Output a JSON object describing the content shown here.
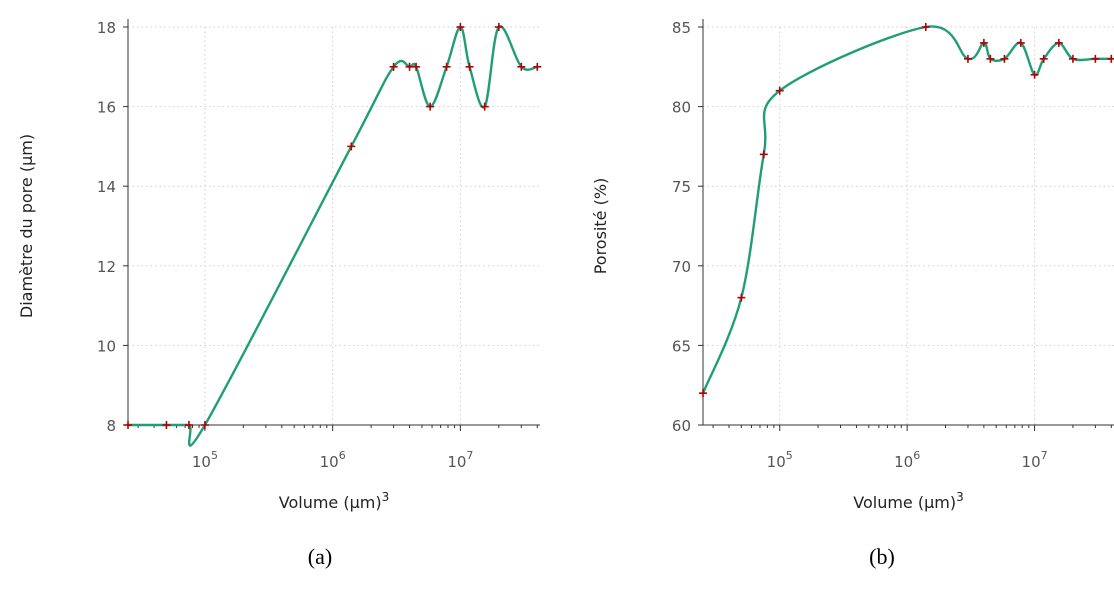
{
  "chart_data": [
    {
      "type": "line",
      "caption": "(a)",
      "xlabel": "Volume (µm)",
      "xlabel_sup": "3",
      "ylabel": "Diamètre du pore (µm)",
      "xscale": "log",
      "xlim": [
        25000,
        42000000
      ],
      "ylim": [
        8,
        18
      ],
      "yticks": [
        8,
        10,
        12,
        14,
        16,
        18
      ],
      "xticks": [
        {
          "base": "10",
          "exp": "5",
          "value": 100000
        },
        {
          "base": "10",
          "exp": "6",
          "value": 1000000
        },
        {
          "base": "10",
          "exp": "7",
          "value": 10000000
        }
      ],
      "grid": true,
      "line_color": "#1f9e78",
      "marker_color": "#b30000",
      "x": [
        25000,
        50000,
        75000,
        100000,
        1400000,
        3000000,
        4000000,
        4500000,
        5800000,
        7800000,
        10000000,
        11800000,
        15500000,
        20000000,
        30000000,
        40000000
      ],
      "values": [
        8,
        8,
        8,
        8,
        15,
        17,
        17,
        17,
        16,
        17,
        18,
        17,
        16,
        18,
        17,
        17
      ]
    },
    {
      "type": "line",
      "caption": "(b)",
      "xlabel": "Volume (µm)",
      "xlabel_sup": "3",
      "ylabel": "Porosité (%)",
      "xscale": "log",
      "xlim": [
        25000,
        42000000
      ],
      "ylim": [
        60,
        85
      ],
      "yticks": [
        60,
        65,
        70,
        75,
        80,
        85
      ],
      "xticks": [
        {
          "base": "10",
          "exp": "5",
          "value": 100000
        },
        {
          "base": "10",
          "exp": "6",
          "value": 1000000
        },
        {
          "base": "10",
          "exp": "7",
          "value": 10000000
        }
      ],
      "grid": true,
      "line_color": "#1f9e78",
      "marker_color": "#b30000",
      "x": [
        25000,
        50000,
        75000,
        100000,
        1400000,
        3000000,
        4000000,
        4500000,
        5800000,
        7800000,
        10000000,
        11800000,
        15500000,
        20000000,
        30000000,
        40000000
      ],
      "values": [
        62,
        68,
        77,
        81,
        85,
        83,
        84,
        83,
        83,
        84,
        82,
        83,
        84,
        83,
        83,
        83
      ]
    }
  ]
}
